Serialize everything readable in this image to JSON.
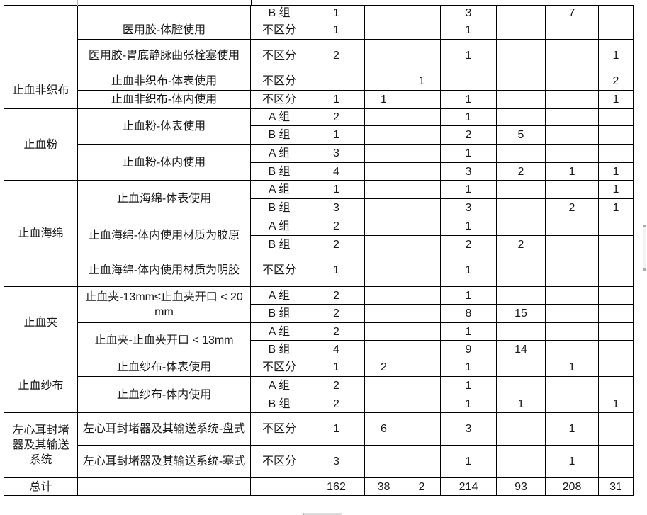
{
  "colors": {
    "grid_border": "#000000",
    "text": "#1a1a1a",
    "scrollbar_thumb": "#f3f3f3",
    "scrollbar_cap": "#ababab"
  },
  "table": {
    "rows": [
      {
        "cat": "",
        "catSpan": 3,
        "sub": "",
        "subSpan": 1,
        "grp": "B 组",
        "v": [
          "1",
          "",
          "",
          "3",
          "",
          "7",
          ""
        ]
      },
      {
        "sub": "医用胶-体腔使用",
        "subSpan": 1,
        "grp": "不区分",
        "v": [
          "1",
          "",
          "",
          "1",
          "",
          "",
          ""
        ]
      },
      {
        "sub": "医用胶-胃底静脉曲张栓塞使用",
        "subSpan": 1,
        "grp": "不区分",
        "v": [
          "2",
          "",
          "",
          "1",
          "",
          "",
          "1"
        ]
      },
      {
        "cat": "止血非织布",
        "catSpan": 2,
        "sub": "止血非织布-体表使用",
        "subSpan": 1,
        "grp": "不区分",
        "v": [
          "",
          "",
          "1",
          "",
          "",
          "",
          "2"
        ]
      },
      {
        "sub": "止血非织布-体内使用",
        "subSpan": 1,
        "grp": "不区分",
        "v": [
          "1",
          "1",
          "",
          "1",
          "",
          "",
          "1"
        ]
      },
      {
        "cat": "止血粉",
        "catSpan": 4,
        "sub": "止血粉-体表使用",
        "subSpan": 2,
        "grp": "A 组",
        "v": [
          "2",
          "",
          "",
          "1",
          "",
          "",
          ""
        ]
      },
      {
        "grp": "B 组",
        "v": [
          "1",
          "",
          "",
          "2",
          "5",
          "",
          ""
        ]
      },
      {
        "sub": "止血粉-体内使用",
        "subSpan": 2,
        "grp": "A 组",
        "v": [
          "3",
          "",
          "",
          "1",
          "",
          "",
          ""
        ]
      },
      {
        "grp": "B 组",
        "v": [
          "4",
          "",
          "",
          "3",
          "2",
          "1",
          "1"
        ]
      },
      {
        "cat": "止血海绵",
        "catSpan": 5,
        "sub": "止血海绵-体表使用",
        "subSpan": 2,
        "grp": "A 组",
        "v": [
          "1",
          "",
          "",
          "1",
          "",
          "",
          "1"
        ]
      },
      {
        "grp": "B 组",
        "v": [
          "3",
          "",
          "",
          "3",
          "",
          "2",
          "1"
        ]
      },
      {
        "sub": "止血海绵-体内使用材质为胶原",
        "subSpan": 2,
        "grp": "A 组",
        "v": [
          "2",
          "",
          "",
          "1",
          "",
          "",
          ""
        ]
      },
      {
        "grp": "B 组",
        "v": [
          "2",
          "",
          "",
          "2",
          "2",
          "",
          ""
        ]
      },
      {
        "sub": "止血海绵-体内使用材质为明胶",
        "subSpan": 1,
        "grp": "不区分",
        "v": [
          "1",
          "",
          "",
          "1",
          "",
          "",
          ""
        ]
      },
      {
        "cat": "止血夹",
        "catSpan": 4,
        "sub": "止血夹-13mm≤止血夹开口 < 20mm",
        "subSpan": 2,
        "grp": "A 组",
        "v": [
          "2",
          "",
          "",
          "1",
          "",
          "",
          ""
        ]
      },
      {
        "grp": "B 组",
        "v": [
          "2",
          "",
          "",
          "8",
          "15",
          "",
          ""
        ]
      },
      {
        "sub": "止血夹-止血夹开口 < 13mm",
        "subSpan": 2,
        "grp": "A 组",
        "v": [
          "2",
          "",
          "",
          "1",
          "",
          "",
          ""
        ]
      },
      {
        "grp": "B 组",
        "v": [
          "4",
          "",
          "",
          "9",
          "14",
          "",
          ""
        ]
      },
      {
        "cat": "止血纱布",
        "catSpan": 3,
        "sub": "止血纱布-体表使用",
        "subSpan": 1,
        "grp": "不区分",
        "v": [
          "1",
          "2",
          "",
          "1",
          "",
          "1",
          ""
        ]
      },
      {
        "sub": "止血纱布-体内使用",
        "subSpan": 2,
        "grp": "A 组",
        "v": [
          "2",
          "",
          "",
          "1",
          "",
          "",
          ""
        ]
      },
      {
        "grp": "B 组",
        "v": [
          "2",
          "",
          "",
          "1",
          "1",
          "",
          "1"
        ]
      },
      {
        "cat": "左心耳封堵器及其输送系统",
        "catSpan": 2,
        "sub": "左心耳封堵器及其输送系统-盘式",
        "subSpan": 1,
        "grp": "不区分",
        "v": [
          "1",
          "6",
          "",
          "3",
          "",
          "1",
          ""
        ]
      },
      {
        "sub": "左心耳封堵器及其输送系统-塞式",
        "subSpan": 1,
        "grp": "不区分",
        "v": [
          "3",
          "",
          "",
          "1",
          "",
          "1",
          ""
        ]
      },
      {
        "cat": "总计",
        "catSpan": 1,
        "sub": "",
        "subSpan": 1,
        "grp": "",
        "v": [
          "162",
          "38",
          "2",
          "214",
          "93",
          "208",
          "31"
        ]
      }
    ]
  }
}
